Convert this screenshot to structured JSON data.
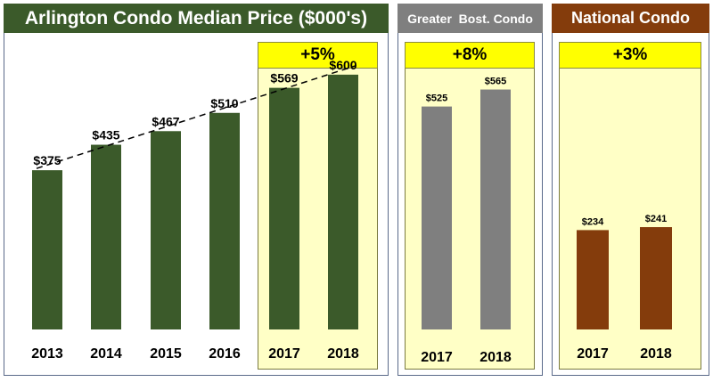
{
  "chart_data": [
    {
      "type": "bar",
      "title": "Arlington Condo Median Price ($000's)",
      "categories": [
        "2013",
        "2014",
        "2015",
        "2016",
        "2017",
        "2018"
      ],
      "values": [
        375,
        435,
        467,
        510,
        569,
        600
      ],
      "value_labels": [
        "$375",
        "$435",
        "$467",
        "$510",
        "$569",
        "$600"
      ],
      "highlight_label": "+5%",
      "highlight_categories": [
        "2017",
        "2018"
      ],
      "trendline": "dashed",
      "ylim": [
        0,
        650
      ],
      "title_color": "#3b5a2a",
      "bar_color": "#3b5a2a"
    },
    {
      "type": "bar",
      "title": "Greater  Bost. Condo",
      "categories": [
        "2017",
        "2018"
      ],
      "values": [
        525,
        565
      ],
      "value_labels": [
        "$525",
        "$565"
      ],
      "highlight_label": "+8%",
      "ylim": [
        0,
        650
      ],
      "title_color": "#7f7f7f",
      "bar_color": "#7f7f7f"
    },
    {
      "type": "bar",
      "title": "National Condo",
      "categories": [
        "2017",
        "2018"
      ],
      "values": [
        234,
        241
      ],
      "value_labels": [
        "$234",
        "$241"
      ],
      "highlight_label": "+3%",
      "ylim": [
        0,
        650
      ],
      "title_color": "#843c0c",
      "bar_color": "#843c0c"
    }
  ]
}
